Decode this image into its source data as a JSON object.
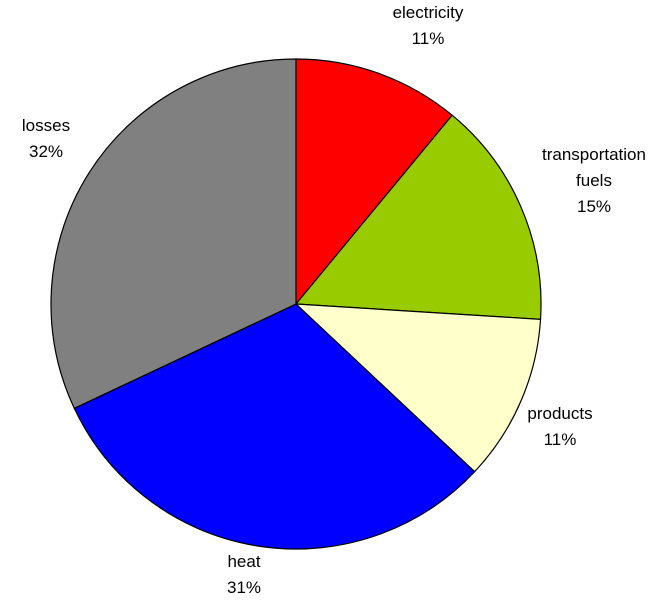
{
  "chart_data": {
    "type": "pie",
    "title": "",
    "start": "12 o'clock",
    "direction": "clockwise",
    "legend": "none",
    "slices": [
      {
        "lines": [
          "electricity",
          "11%"
        ],
        "value": 11,
        "color": "#ff0000"
      },
      {
        "lines": [
          "transportation",
          "fuels",
          "15%"
        ],
        "value": 15,
        "color": "#99cc00"
      },
      {
        "lines": [
          "products",
          "11%"
        ],
        "value": 11,
        "color": "#ffffcc"
      },
      {
        "lines": [
          "heat",
          "31%"
        ],
        "value": 31,
        "color": "#0000ff"
      },
      {
        "lines": [
          "losses",
          "32%"
        ],
        "value": 32,
        "color": "#808080"
      }
    ]
  }
}
